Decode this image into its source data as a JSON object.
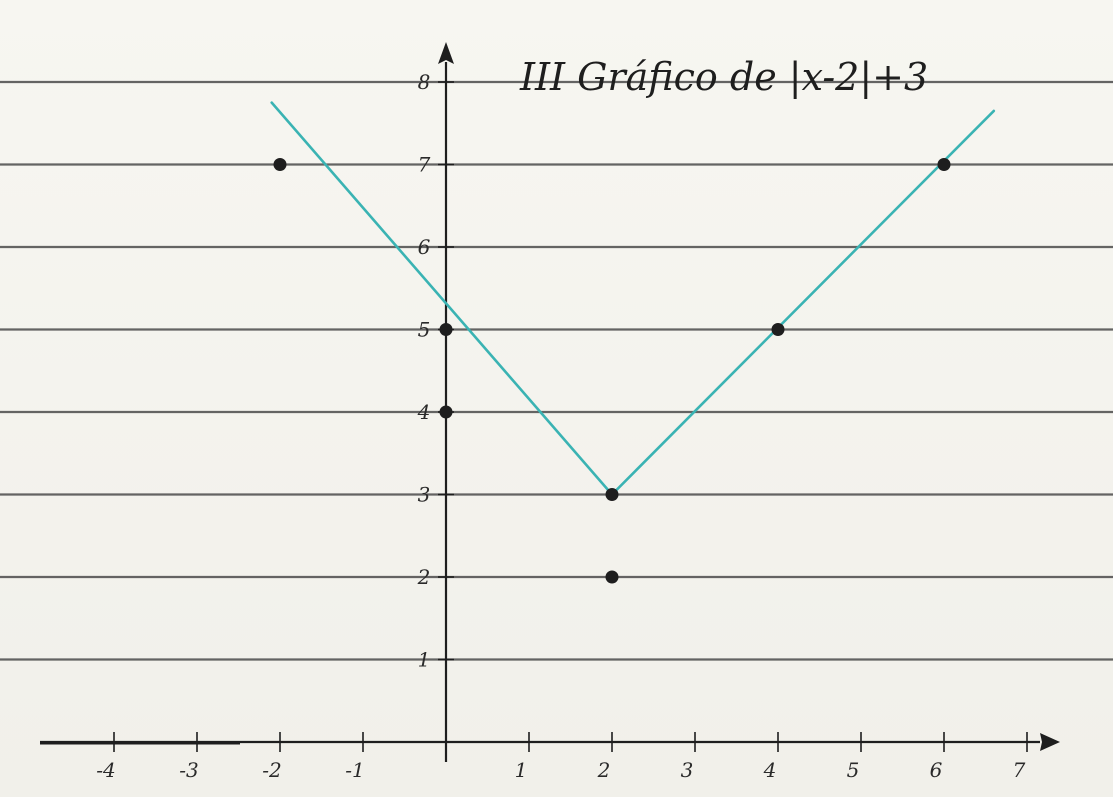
{
  "chart_data": {
    "type": "line",
    "title": "III  Gráfico de |x-2|+3",
    "xlabel": "",
    "ylabel": "",
    "xlim": [
      -4.4,
      7.3
    ],
    "ylim": [
      0,
      8
    ],
    "grid": true,
    "x_ticks": [
      {
        "value": -4,
        "label": "-4"
      },
      {
        "value": -3,
        "label": "-3"
      },
      {
        "value": -2,
        "label": "-2"
      },
      {
        "value": -1,
        "label": "-1"
      },
      {
        "value": 1,
        "label": "1"
      },
      {
        "value": 2,
        "label": "2"
      },
      {
        "value": 3,
        "label": "3"
      },
      {
        "value": 4,
        "label": "4"
      },
      {
        "value": 5,
        "label": "5"
      },
      {
        "value": 6,
        "label": "6"
      },
      {
        "value": 7,
        "label": "7"
      }
    ],
    "y_ticks": [
      {
        "value": 1,
        "label": "1"
      },
      {
        "value": 2,
        "label": "2"
      },
      {
        "value": 3,
        "label": "3"
      },
      {
        "value": 4,
        "label": "4"
      },
      {
        "value": 5,
        "label": "5"
      },
      {
        "value": 6,
        "label": "6"
      },
      {
        "value": 7,
        "label": "7"
      },
      {
        "value": 8,
        "label": "8"
      }
    ],
    "series": [
      {
        "color": "#3ab3b3",
        "x": [
          -2.1,
          2,
          6.6
        ],
        "y": [
          7.75,
          3,
          7.65
        ]
      }
    ],
    "points": [
      {
        "x": -2,
        "y": 7
      },
      {
        "x": 0,
        "y": 5
      },
      {
        "x": 0,
        "y": 4
      },
      {
        "x": 2,
        "y": 3
      },
      {
        "x": 2,
        "y": 2
      },
      {
        "x": 4,
        "y": 5
      },
      {
        "x": 6,
        "y": 7
      }
    ],
    "colors": {
      "line": "#3ab3b3",
      "ink": "#1e1e1e",
      "rule": "#4a4a4a",
      "paper": "#f5f4ef"
    }
  }
}
